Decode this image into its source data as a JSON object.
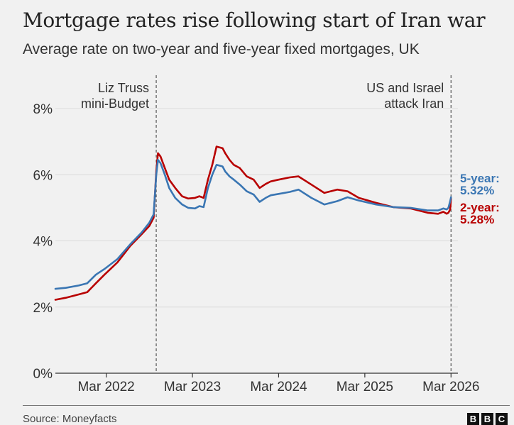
{
  "title": "Mortgage rates rise following start of Iran war",
  "subtitle": "Average rate on two-year and five-year fixed mortgages, UK",
  "source": "Source: Moneyfacts",
  "logo": [
    "B",
    "B",
    "C"
  ],
  "chart_data": {
    "type": "line",
    "title": "Mortgage rates rise following start of Iran war",
    "subtitle": "Average rate on two-year and five-year fixed mortgages, UK",
    "xlabel": "",
    "ylabel": "",
    "ylim": [
      0,
      8
    ],
    "x_ticks": [
      "Mar 2022",
      "Mar 2023",
      "Mar 2024",
      "Mar 2025",
      "Mar 2026"
    ],
    "x_tick_positions": [
      2022.17,
      2023.17,
      2024.17,
      2025.17,
      2026.17
    ],
    "y_ticks": [
      0,
      2,
      4,
      6,
      8
    ],
    "y_tick_labels": [
      "0%",
      "2%",
      "4%",
      "6%",
      "8%"
    ],
    "xlim": [
      2021.58,
      2026.25
    ],
    "grid": true,
    "annotations": [
      {
        "x": 2022.75,
        "lines": [
          "Liz Truss",
          "mini-Budget"
        ],
        "align": "left"
      },
      {
        "x": 2026.17,
        "lines": [
          "US and Israel",
          "attack Iran"
        ],
        "align": "left"
      }
    ],
    "series": [
      {
        "name": "5-year",
        "color": "#3a76b3",
        "end_label_1": "5-year:",
        "end_label_2": "5.32%",
        "x": [
          2021.58,
          2021.7,
          2021.85,
          2021.95,
          2022.05,
          2022.15,
          2022.3,
          2022.45,
          2022.58,
          2022.67,
          2022.72,
          2022.75,
          2022.77,
          2022.8,
          2022.85,
          2022.9,
          2022.97,
          2023.05,
          2023.12,
          2023.2,
          2023.25,
          2023.3,
          2023.35,
          2023.4,
          2023.45,
          2023.52,
          2023.55,
          2023.6,
          2023.65,
          2023.72,
          2023.8,
          2023.88,
          2023.95,
          2024.02,
          2024.08,
          2024.17,
          2024.3,
          2024.4,
          2024.55,
          2024.7,
          2024.85,
          2024.97,
          2025.1,
          2025.3,
          2025.5,
          2025.7,
          2025.9,
          2026.02,
          2026.08,
          2026.12,
          2026.14,
          2026.16,
          2026.17
        ],
        "values": [
          2.55,
          2.58,
          2.65,
          2.72,
          2.98,
          3.15,
          3.45,
          3.9,
          4.25,
          4.55,
          4.8,
          6.0,
          6.45,
          6.35,
          6.0,
          5.6,
          5.3,
          5.1,
          5.0,
          4.98,
          5.05,
          5.02,
          5.6,
          6.0,
          6.3,
          6.25,
          6.1,
          5.95,
          5.85,
          5.7,
          5.5,
          5.4,
          5.18,
          5.3,
          5.38,
          5.42,
          5.48,
          5.55,
          5.3,
          5.1,
          5.2,
          5.32,
          5.22,
          5.1,
          5.02,
          5.0,
          4.92,
          4.92,
          4.98,
          4.95,
          5.0,
          5.2,
          5.32
        ]
      },
      {
        "name": "2-year",
        "color": "#b80000",
        "end_label_1": "2-year:",
        "end_label_2": "5.28%",
        "x": [
          2021.58,
          2021.7,
          2021.85,
          2021.95,
          2022.05,
          2022.15,
          2022.3,
          2022.45,
          2022.58,
          2022.67,
          2022.72,
          2022.75,
          2022.77,
          2022.8,
          2022.85,
          2022.9,
          2022.97,
          2023.05,
          2023.12,
          2023.2,
          2023.25,
          2023.3,
          2023.35,
          2023.4,
          2023.45,
          2023.52,
          2023.55,
          2023.6,
          2023.65,
          2023.72,
          2023.8,
          2023.88,
          2023.95,
          2024.02,
          2024.08,
          2024.17,
          2024.3,
          2024.4,
          2024.55,
          2024.7,
          2024.85,
          2024.97,
          2025.1,
          2025.3,
          2025.5,
          2025.7,
          2025.9,
          2026.02,
          2026.08,
          2026.12,
          2026.14,
          2026.16,
          2026.17
        ],
        "values": [
          2.22,
          2.28,
          2.38,
          2.45,
          2.72,
          2.98,
          3.35,
          3.85,
          4.2,
          4.45,
          4.7,
          6.1,
          6.65,
          6.55,
          6.2,
          5.85,
          5.6,
          5.35,
          5.28,
          5.3,
          5.35,
          5.3,
          5.85,
          6.3,
          6.85,
          6.8,
          6.65,
          6.45,
          6.3,
          6.2,
          5.95,
          5.85,
          5.6,
          5.72,
          5.8,
          5.85,
          5.92,
          5.95,
          5.7,
          5.45,
          5.55,
          5.5,
          5.3,
          5.15,
          5.02,
          4.98,
          4.85,
          4.82,
          4.88,
          4.82,
          4.85,
          4.95,
          5.28
        ]
      }
    ]
  }
}
